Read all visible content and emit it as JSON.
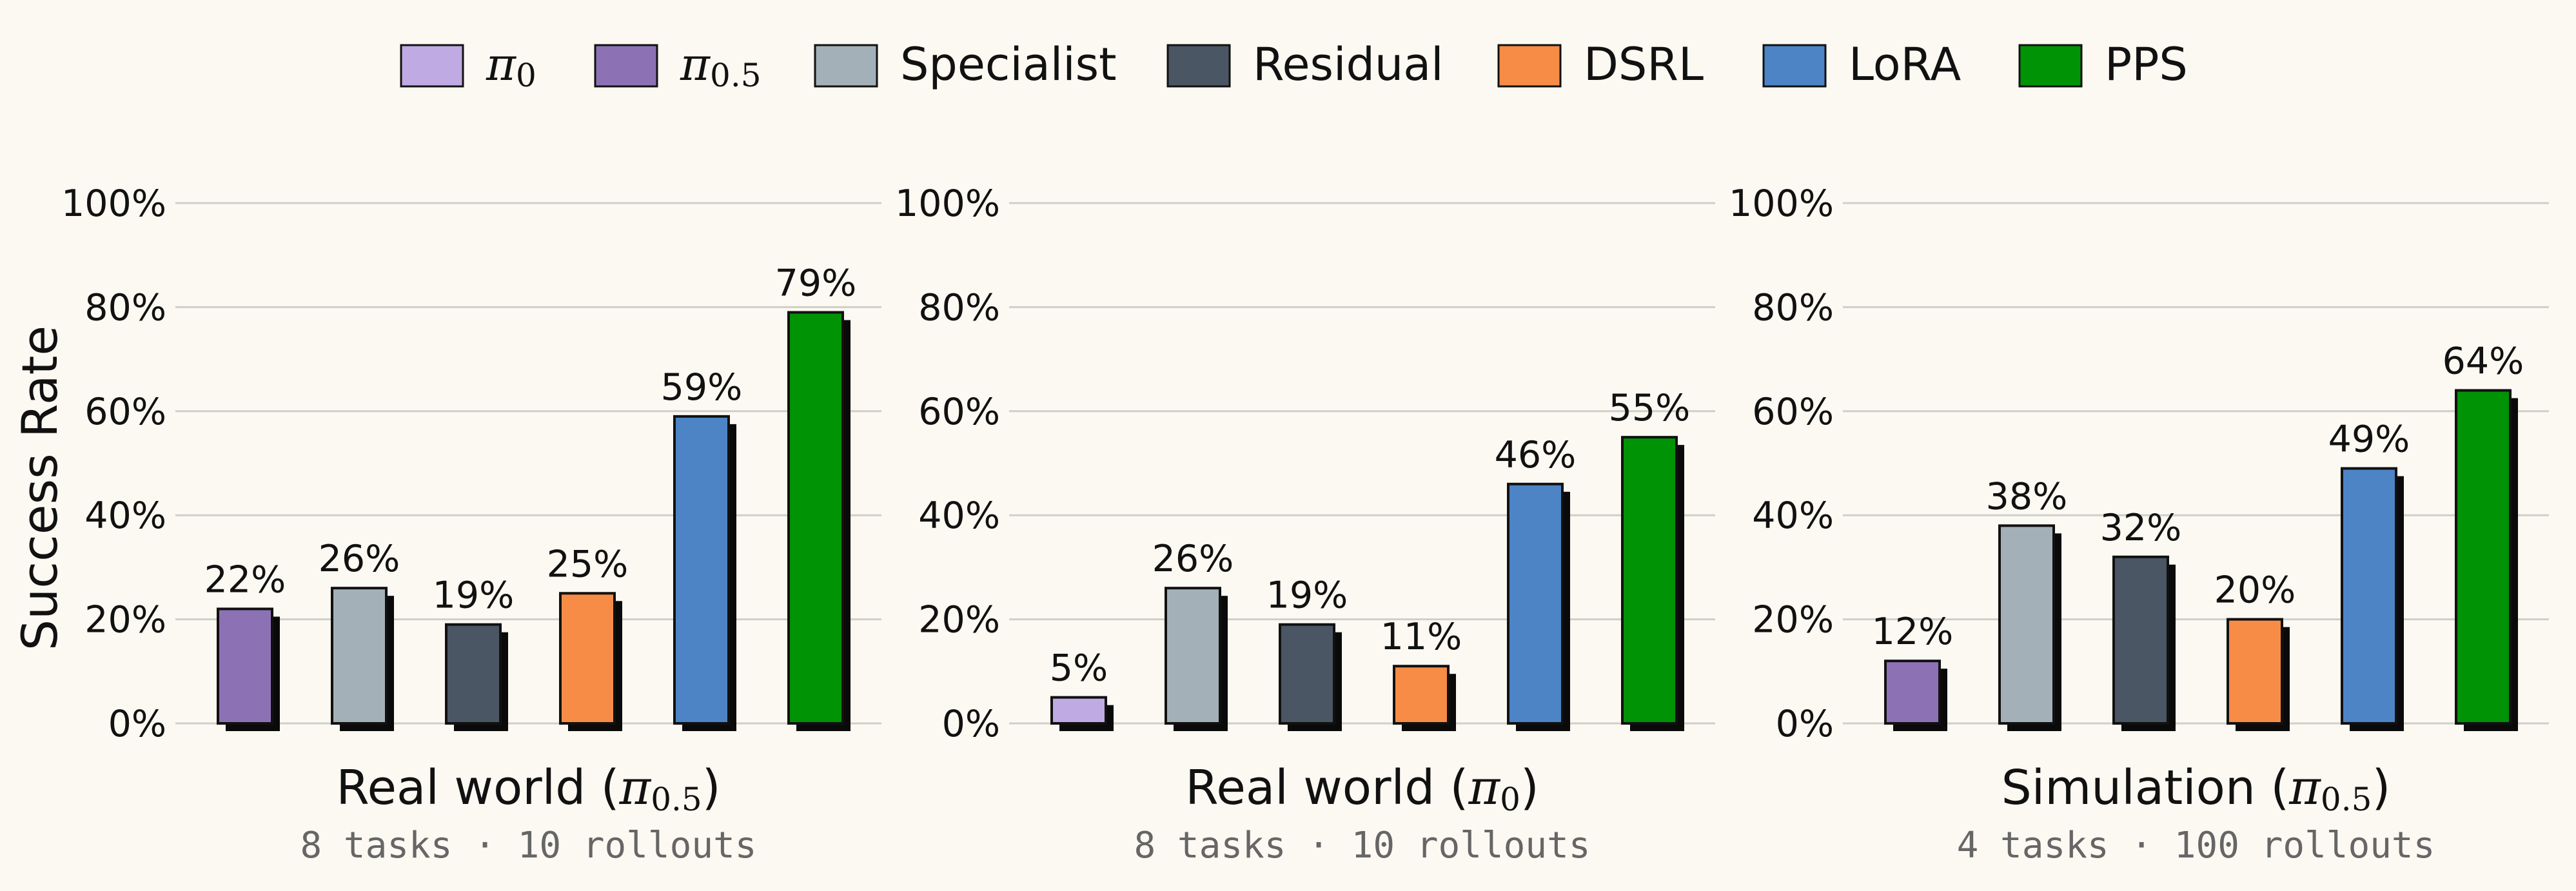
{
  "legend": [
    {
      "key": "pi0",
      "sym": "π",
      "sub": "0",
      "color": "#c0aae3"
    },
    {
      "key": "pi05",
      "sym": "π",
      "sub": "0.5",
      "color": "#8c72b5"
    },
    {
      "key": "specialist",
      "label": "Specialist",
      "color": "#a3b0b7"
    },
    {
      "key": "residual",
      "label": "Residual",
      "color": "#4a5663"
    },
    {
      "key": "dsrl",
      "label": "DSRL",
      "color": "#f68c45"
    },
    {
      "key": "lora",
      "label": "LoRA",
      "color": "#4c84c6"
    },
    {
      "key": "pps",
      "label": "PPS",
      "color": "#009306"
    }
  ],
  "ylabel": "Success Rate",
  "chart_data": [
    {
      "type": "bar",
      "title_text": "Real world (",
      "title_sym": "π",
      "title_sub": "0.5",
      "title_close": ")",
      "subtitle": "8 tasks · 10 rollouts",
      "ylim": [
        0,
        100
      ],
      "yticks": [
        "0%",
        "20%",
        "40%",
        "60%",
        "80%",
        "100%"
      ],
      "grid": true,
      "bars": [
        {
          "series": "pi05",
          "value": 22,
          "label": "22%"
        },
        {
          "series": "specialist",
          "value": 26,
          "label": "26%"
        },
        {
          "series": "residual",
          "value": 19,
          "label": "19%"
        },
        {
          "series": "dsrl",
          "value": 25,
          "label": "25%"
        },
        {
          "series": "lora",
          "value": 59,
          "label": "59%"
        },
        {
          "series": "pps",
          "value": 79,
          "label": "79%"
        }
      ]
    },
    {
      "type": "bar",
      "title_text": "Real world (",
      "title_sym": "π",
      "title_sub": "0",
      "title_close": ")",
      "subtitle": "8 tasks · 10 rollouts",
      "ylim": [
        0,
        100
      ],
      "yticks": [
        "0%",
        "20%",
        "40%",
        "60%",
        "80%",
        "100%"
      ],
      "grid": true,
      "bars": [
        {
          "series": "pi0",
          "value": 5,
          "label": "5%"
        },
        {
          "series": "specialist",
          "value": 26,
          "label": "26%"
        },
        {
          "series": "residual",
          "value": 19,
          "label": "19%"
        },
        {
          "series": "dsrl",
          "value": 11,
          "label": "11%"
        },
        {
          "series": "lora",
          "value": 46,
          "label": "46%"
        },
        {
          "series": "pps",
          "value": 55,
          "label": "55%"
        }
      ]
    },
    {
      "type": "bar",
      "title_text": "Simulation (",
      "title_sym": "π",
      "title_sub": "0.5",
      "title_close": ")",
      "subtitle": "4 tasks · 100 rollouts",
      "ylim": [
        0,
        100
      ],
      "yticks": [
        "0%",
        "20%",
        "40%",
        "60%",
        "80%",
        "100%"
      ],
      "grid": true,
      "bars": [
        {
          "series": "pi05",
          "value": 12,
          "label": "12%"
        },
        {
          "series": "specialist",
          "value": 38,
          "label": "38%"
        },
        {
          "series": "residual",
          "value": 32,
          "label": "32%"
        },
        {
          "series": "dsrl",
          "value": 20,
          "label": "20%"
        },
        {
          "series": "lora",
          "value": 49,
          "label": "49%"
        },
        {
          "series": "pps",
          "value": 64,
          "label": "64%"
        }
      ]
    }
  ]
}
